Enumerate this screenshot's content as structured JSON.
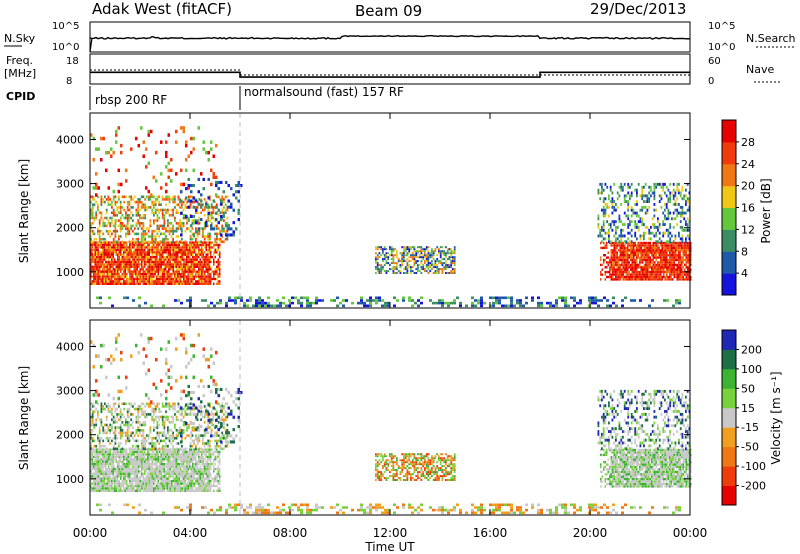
{
  "header": {
    "station": "Adak West (fitACF)",
    "beam": "Beam 09",
    "date": "29/Dec/2013"
  },
  "chart_data": [
    {
      "type": "line",
      "panel": "noise",
      "left_label": "N.Sky",
      "right_label": "N.Search",
      "left_ticks": [
        "10^5",
        "10^0"
      ],
      "right_ticks": [
        "10^5",
        "10^0"
      ],
      "x_range_hours": [
        0,
        24
      ]
    },
    {
      "type": "line",
      "panel": "frequency-nave",
      "left_label_line1": "Freq.",
      "left_label_line2": "[MHz]",
      "right_label": "Nave",
      "left_ticks": [
        "18",
        "8"
      ],
      "right_ticks": [
        "60",
        "0"
      ],
      "series": [
        {
          "name": "Freq.",
          "x": [
            0,
            0.05,
            6,
            10,
            18,
            24
          ],
          "y": [
            11.9,
            11.9,
            10.3,
            10.3,
            11.9,
            11.9
          ]
        }
      ]
    },
    {
      "type": "table",
      "panel": "cpid",
      "label": "CPID",
      "segments": [
        {
          "start_hour": 0,
          "label": "rbsp 200 RF"
        },
        {
          "start_hour": 6,
          "label": "normalsound (fast) 157 RF"
        }
      ]
    },
    {
      "type": "heatmap",
      "panel": "power",
      "ylabel": "Slant Range [km]",
      "yticks": [
        "1000",
        "2000",
        "3000",
        "4000"
      ],
      "y_values": [
        1000,
        2000,
        3000,
        4000
      ],
      "ylim": [
        180,
        4600
      ],
      "colorbar_label": "Power [dB]",
      "colorbar_ticks": [
        "4",
        "8",
        "12",
        "16",
        "20",
        "24",
        "28"
      ],
      "colors": [
        "#1414dc",
        "#1e5aa8",
        "#3c8c64",
        "#64c83c",
        "#f0c814",
        "#f07814",
        "#f03c0a",
        "#e60000"
      ]
    },
    {
      "type": "heatmap",
      "panel": "velocity",
      "ylabel": "Slant Range [km]",
      "yticks": [
        "1000",
        "2000",
        "3000",
        "4000"
      ],
      "y_values": [
        1000,
        2000,
        3000,
        4000
      ],
      "ylim": [
        180,
        4600
      ],
      "colorbar_label": "Velocity [m s⁻¹]",
      "colorbar_ticks": [
        "200",
        "100",
        "50",
        "15",
        "-15",
        "-50",
        "-100",
        "-200"
      ],
      "colors": [
        "#1e28b4",
        "#1e6e46",
        "#3cb432",
        "#78d23c",
        "#c8c8c8",
        "#f0a01e",
        "#f07814",
        "#f03c0a",
        "#e60000"
      ]
    }
  ],
  "xaxis": {
    "label": "Time UT",
    "ticks": [
      "00:00",
      "04:00",
      "08:00",
      "12:00",
      "16:00",
      "20:00",
      "00:00"
    ],
    "tick_hours": [
      0,
      4,
      8,
      12,
      16,
      20,
      24
    ]
  }
}
